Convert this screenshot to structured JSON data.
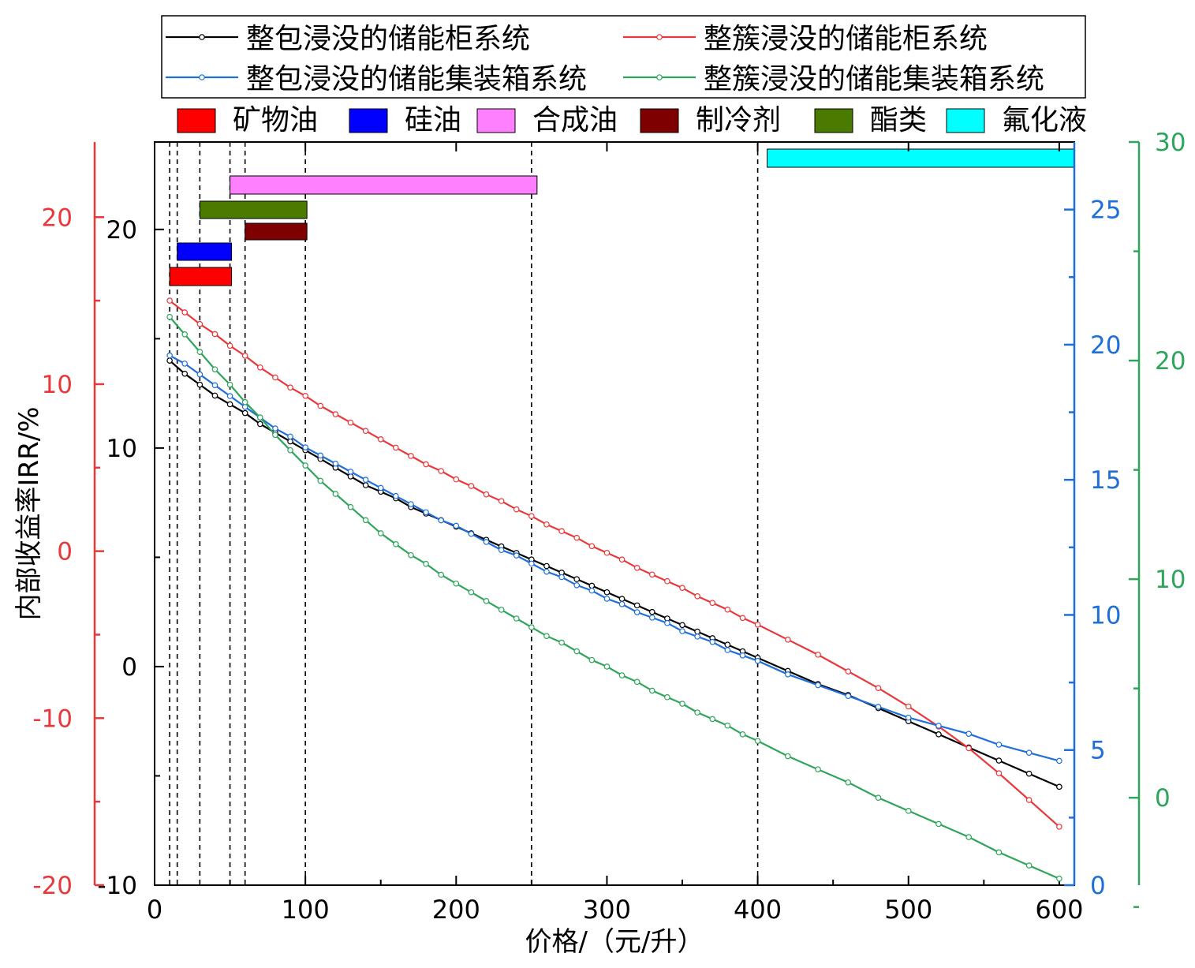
{
  "chart_data": {
    "type": "line",
    "xlabel": "价格/（元/升）",
    "ylabel": "内部收益率IRR/%",
    "xlim": [
      0,
      610
    ],
    "x_ticks": [
      "0",
      "100",
      "200",
      "300",
      "400",
      "500",
      "600"
    ],
    "axes": {
      "black": {
        "ylim": [
          -10,
          24
        ],
        "ticks": [
          "-10",
          "0",
          "10",
          "20"
        ],
        "color": "#000000"
      },
      "red": {
        "ylim": [
          -20,
          24.5
        ],
        "ticks": [
          "-20",
          "-10",
          "0",
          "10",
          "20"
        ],
        "color": "#e8383b"
      },
      "blue": {
        "ylim": [
          0,
          27.5
        ],
        "ticks": [
          "0",
          "5",
          "10",
          "15",
          "20",
          "25"
        ],
        "color": "#1f6fd8"
      },
      "green": {
        "ylim": [
          -4,
          30
        ],
        "ticks": [
          "0",
          "10",
          "20",
          "30"
        ],
        "color": "#2ea55a"
      }
    },
    "series": [
      {
        "name": "整包浸没的储能柜系统",
        "axis": "black",
        "color": "#000000",
        "x": [
          10,
          20,
          30,
          40,
          50,
          60,
          70,
          80,
          90,
          100,
          110,
          120,
          130,
          140,
          150,
          160,
          170,
          180,
          190,
          200,
          210,
          220,
          230,
          240,
          250,
          260,
          270,
          280,
          290,
          300,
          310,
          320,
          330,
          340,
          350,
          360,
          370,
          380,
          390,
          400,
          420,
          440,
          460,
          480,
          500,
          520,
          540,
          560,
          580,
          600
        ],
        "y": [
          14.0,
          13.4,
          12.9,
          12.4,
          12.0,
          11.6,
          11.1,
          10.7,
          10.3,
          9.9,
          9.5,
          9.1,
          8.7,
          8.3,
          8.0,
          7.7,
          7.3,
          7.0,
          6.7,
          6.4,
          6.1,
          5.8,
          5.5,
          5.2,
          4.9,
          4.6,
          4.3,
          4.0,
          3.7,
          3.4,
          3.1,
          2.8,
          2.5,
          2.2,
          1.9,
          1.6,
          1.3,
          1.0,
          0.7,
          0.4,
          -0.2,
          -0.8,
          -1.3,
          -1.9,
          -2.5,
          -3.1,
          -3.7,
          -4.3,
          -4.9,
          -5.5
        ]
      },
      {
        "name": "整簇浸没的储能柜系统",
        "axis": "red",
        "color": "#e8383b",
        "x": [
          10,
          20,
          30,
          40,
          50,
          60,
          70,
          80,
          90,
          100,
          110,
          120,
          130,
          140,
          150,
          160,
          170,
          180,
          190,
          200,
          210,
          220,
          230,
          240,
          250,
          260,
          270,
          280,
          290,
          300,
          310,
          320,
          330,
          340,
          350,
          360,
          370,
          380,
          390,
          400,
          420,
          440,
          460,
          480,
          500,
          520,
          540,
          560,
          580,
          600
        ],
        "y": [
          15.0,
          14.3,
          13.6,
          13.0,
          12.3,
          11.7,
          11.0,
          10.4,
          9.8,
          9.3,
          8.7,
          8.2,
          7.7,
          7.2,
          6.7,
          6.2,
          5.7,
          5.2,
          4.8,
          4.3,
          3.9,
          3.4,
          3.0,
          2.5,
          2.1,
          1.6,
          1.2,
          0.8,
          0.3,
          -0.1,
          -0.5,
          -1.0,
          -1.4,
          -1.8,
          -2.2,
          -2.7,
          -3.1,
          -3.5,
          -4.0,
          -4.4,
          -5.3,
          -6.2,
          -7.2,
          -8.2,
          -9.3,
          -10.5,
          -11.8,
          -13.3,
          -14.9,
          -16.5
        ]
      },
      {
        "name": "整包浸没的储能集装箱系统",
        "axis": "blue",
        "color": "#1f6fd8",
        "x": [
          10,
          20,
          30,
          40,
          50,
          60,
          70,
          80,
          90,
          100,
          110,
          120,
          130,
          140,
          150,
          160,
          170,
          180,
          190,
          200,
          210,
          220,
          230,
          240,
          250,
          260,
          270,
          280,
          290,
          300,
          310,
          320,
          330,
          340,
          350,
          360,
          370,
          380,
          390,
          400,
          420,
          440,
          460,
          480,
          500,
          520,
          540,
          560,
          580,
          600
        ],
        "y": [
          19.6,
          19.3,
          18.9,
          18.5,
          18.1,
          17.7,
          17.3,
          16.9,
          16.6,
          16.2,
          15.9,
          15.6,
          15.3,
          15.0,
          14.7,
          14.4,
          14.1,
          13.8,
          13.5,
          13.3,
          13.0,
          12.7,
          12.4,
          12.2,
          11.9,
          11.6,
          11.4,
          11.1,
          10.9,
          10.6,
          10.4,
          10.1,
          9.9,
          9.7,
          9.4,
          9.2,
          9.0,
          8.7,
          8.5,
          8.3,
          7.8,
          7.4,
          7.0,
          6.6,
          6.2,
          5.9,
          5.6,
          5.2,
          4.9,
          4.6
        ]
      },
      {
        "name": "整簇浸没的储能集装箱系统",
        "axis": "green",
        "color": "#2ea55a",
        "x": [
          10,
          20,
          30,
          40,
          50,
          60,
          70,
          80,
          90,
          100,
          110,
          120,
          130,
          140,
          150,
          160,
          170,
          180,
          190,
          200,
          210,
          220,
          230,
          240,
          250,
          260,
          270,
          280,
          290,
          300,
          310,
          320,
          330,
          340,
          350,
          360,
          370,
          380,
          390,
          400,
          420,
          440,
          460,
          480,
          500,
          520,
          540,
          560,
          580,
          600
        ],
        "y": [
          22.0,
          21.2,
          20.4,
          19.6,
          18.9,
          18.1,
          17.4,
          16.6,
          15.9,
          15.2,
          14.5,
          13.9,
          13.3,
          12.7,
          12.1,
          11.6,
          11.1,
          10.7,
          10.2,
          9.8,
          9.4,
          9.0,
          8.6,
          8.2,
          7.8,
          7.4,
          7.1,
          6.7,
          6.3,
          6.0,
          5.6,
          5.3,
          4.9,
          4.6,
          4.3,
          3.9,
          3.6,
          3.3,
          2.9,
          2.6,
          1.9,
          1.3,
          0.7,
          0.0,
          -0.6,
          -1.2,
          -1.8,
          -2.5,
          -3.1,
          -3.7
        ]
      }
    ],
    "materials_legend": [
      "矿物油",
      "硅油",
      "合成油",
      "制冷剂",
      "酯类",
      "氟化液"
    ],
    "material_colors": [
      "#ff0000",
      "#0000ff",
      "#ff80ff",
      "#7f0000",
      "#4a7a00",
      "#00ffff"
    ],
    "price_ranges": [
      {
        "material": "矿物油",
        "min": 10,
        "max": 50
      },
      {
        "material": "硅油",
        "min": 15,
        "max": 50
      },
      {
        "material": "合成油",
        "min": 50,
        "max": 250
      },
      {
        "material": "制冷剂",
        "min": 60,
        "max": 100
      },
      {
        "material": "酯类",
        "min": 30,
        "max": 100
      },
      {
        "material": "氟化液",
        "min": 400,
        "max": 600
      }
    ],
    "vlines": [
      10,
      15,
      30,
      50,
      60,
      100,
      250,
      400
    ]
  }
}
